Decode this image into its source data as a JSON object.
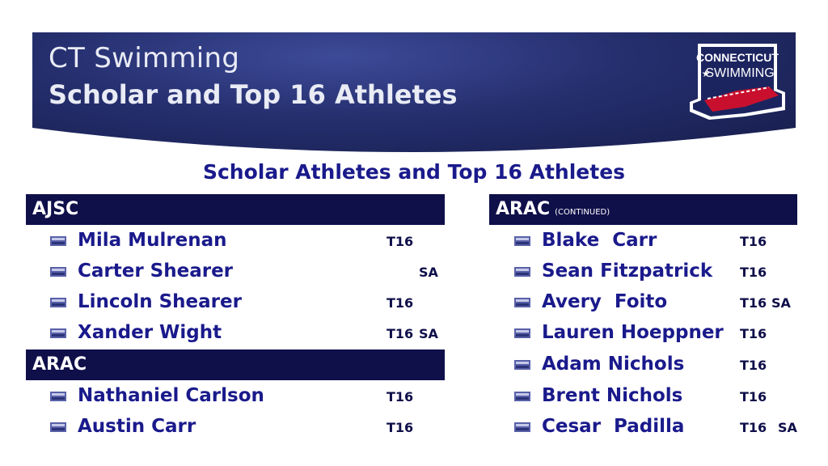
{
  "header": {
    "line1": "CT Swimming",
    "line2": "Scholar and Top 16 Athletes",
    "logo_text": [
      "CONNECTICUT",
      "SWIMMING"
    ]
  },
  "subtitle": "Scholar Athletes and Top 16 Athletes",
  "left": {
    "sections": [
      {
        "title": "AJSC",
        "athletes": [
          {
            "name": "Mila Mulrenan",
            "t16": "T16",
            "sa": ""
          },
          {
            "name": "Carter Shearer",
            "t16": "",
            "sa": "SA"
          },
          {
            "name": "Lincoln Shearer",
            "t16": "T16",
            "sa": ""
          },
          {
            "name": "Xander Wight",
            "t16": "T16",
            "sa": "SA"
          }
        ]
      },
      {
        "title": "ARAC",
        "athletes": [
          {
            "name": "Nathaniel Carlson",
            "t16": "T16",
            "sa": ""
          },
          {
            "name": "Austin Carr",
            "t16": "T16",
            "sa": ""
          }
        ]
      }
    ]
  },
  "right": {
    "title": "ARAC",
    "note": "(CONTINUED)",
    "athletes": [
      {
        "name": "Blake  Carr",
        "t16": "T16",
        "sa": ""
      },
      {
        "name": "Sean Fitzpatrick",
        "t16": "T16",
        "sa": ""
      },
      {
        "name": "Avery  Foito",
        "t16": "T16",
        "sa": "SA"
      },
      {
        "name": "Lauren Hoeppner",
        "t16": "T16",
        "sa": ""
      },
      {
        "name": "Adam Nichols",
        "t16": "T16",
        "sa": ""
      },
      {
        "name": "Brent Nichols",
        "t16": "T16",
        "sa": ""
      },
      {
        "name": "Cesar  Padilla",
        "t16": "T16",
        "sa": "SA"
      }
    ]
  }
}
